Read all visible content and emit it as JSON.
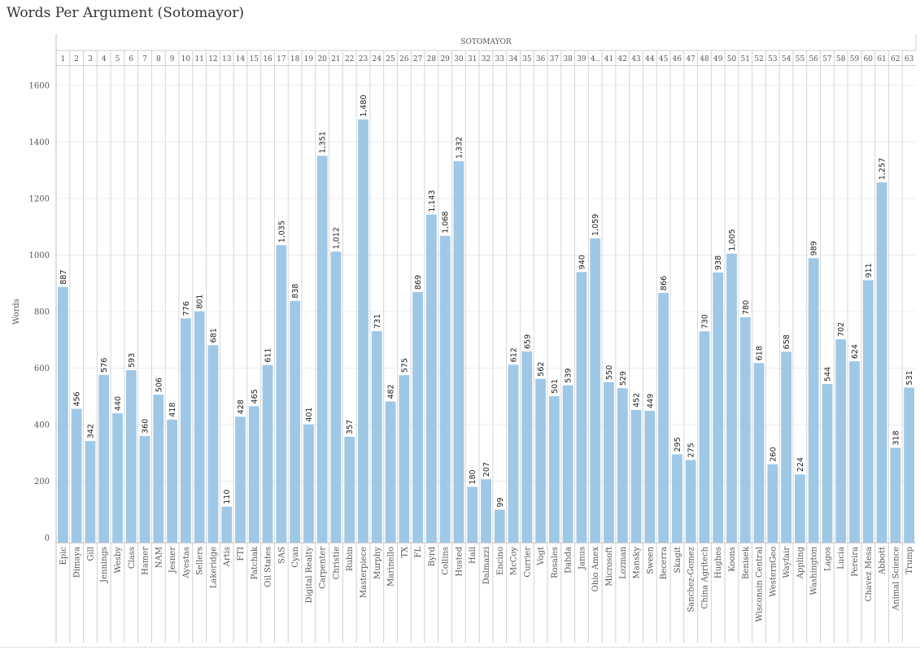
{
  "title": "Words Per Argument (Sotomayor)",
  "chart_data": {
    "type": "bar",
    "title": "Words Per Argument (Sotomayor)",
    "header": "SOTOMAYOR",
    "xlabel": "",
    "ylabel": "Words",
    "ylim": [
      0,
      1600
    ],
    "yticks": [
      0,
      200,
      400,
      600,
      800,
      1000,
      1200,
      1400,
      1600
    ],
    "grid": true,
    "bar_color": "#9fc8e6",
    "column_numbers": [
      "1",
      "2",
      "3",
      "4",
      "5",
      "6",
      "7",
      "8",
      "9",
      "10",
      "11",
      "12",
      "13",
      "14",
      "15",
      "16",
      "17",
      "18",
      "19",
      "20",
      "21",
      "22",
      "23",
      "24",
      "25",
      "26",
      "27",
      "28",
      "29",
      "30",
      "31",
      "32",
      "33",
      "34",
      "35",
      "36",
      "37",
      "38",
      "39",
      "4..",
      "41",
      "42",
      "43",
      "44",
      "45",
      "46",
      "47",
      "48",
      "49",
      "50",
      "51",
      "52",
      "53",
      "54",
      "55",
      "56",
      "57",
      "58",
      "59",
      "60",
      "61",
      "62",
      "63"
    ],
    "categories": [
      "Epic",
      "Dimaya",
      "Gill",
      "Jennings",
      "Wesby",
      "Class",
      "Hamer",
      "NAM",
      "Jesner",
      "Ayestas",
      "Sellers",
      "Lakeridge",
      "Artis",
      "FTI",
      "Patchak",
      "Oil States",
      "SAS",
      "Cyan",
      "Digital Realty",
      "Carpenter",
      "Christie",
      "Rubin",
      "Masterpiece",
      "Murphy",
      "Marinello",
      "TX",
      "FL",
      "Byrd",
      "Collins",
      "Husted",
      "Hall",
      "Dalmazzi",
      "Encino",
      "McCoy",
      "Currier",
      "Vogt",
      "Rosales",
      "Dahda",
      "Janus",
      "Ohio Amex",
      "Microsoft",
      "Lozman",
      "Mansky",
      "Sween",
      "Becerra",
      "Skagit",
      "Sanchez-Gomez",
      "China Agritech",
      "Hughes",
      "Koons",
      "Benisek",
      "Wisconsin Central",
      "WesternGeo",
      "Wayfair",
      "Appling",
      "Washington",
      "Lagos",
      "Lucia",
      "Pereira",
      "Chavez Mesa",
      "Abbott",
      "Animal Science",
      "Trump"
    ],
    "values": [
      887,
      456,
      342,
      576,
      440,
      593,
      360,
      506,
      418,
      776,
      801,
      681,
      110,
      428,
      465,
      611,
      1035,
      838,
      401,
      1351,
      1012,
      357,
      1480,
      731,
      482,
      575,
      869,
      1143,
      1068,
      1332,
      180,
      207,
      99,
      612,
      659,
      562,
      501,
      539,
      940,
      1059,
      550,
      529,
      452,
      449,
      866,
      295,
      275,
      730,
      938,
      1005,
      780,
      618,
      260,
      658,
      224,
      989,
      544,
      702,
      624,
      911,
      1257,
      318,
      531
    ],
    "value_labels": [
      "887",
      "456",
      "342",
      "576",
      "440",
      "593",
      "360",
      "506",
      "418",
      "776",
      "801",
      "681",
      "110",
      "428",
      "465",
      "611",
      "1,035",
      "838",
      "401",
      "1,351",
      "1,012",
      "357",
      "1,480",
      "731",
      "482",
      "575",
      "869",
      "1,143",
      "1,068",
      "1,332",
      "180",
      "207",
      "99",
      "612",
      "659",
      "562",
      "501",
      "539",
      "940",
      "1,059",
      "550",
      "529",
      "452",
      "449",
      "866",
      "295",
      "275",
      "730",
      "938",
      "1,005",
      "780",
      "618",
      "260",
      "658",
      "224",
      "989",
      "544",
      "702",
      "624",
      "911",
      "1,257",
      "318",
      "531"
    ]
  }
}
